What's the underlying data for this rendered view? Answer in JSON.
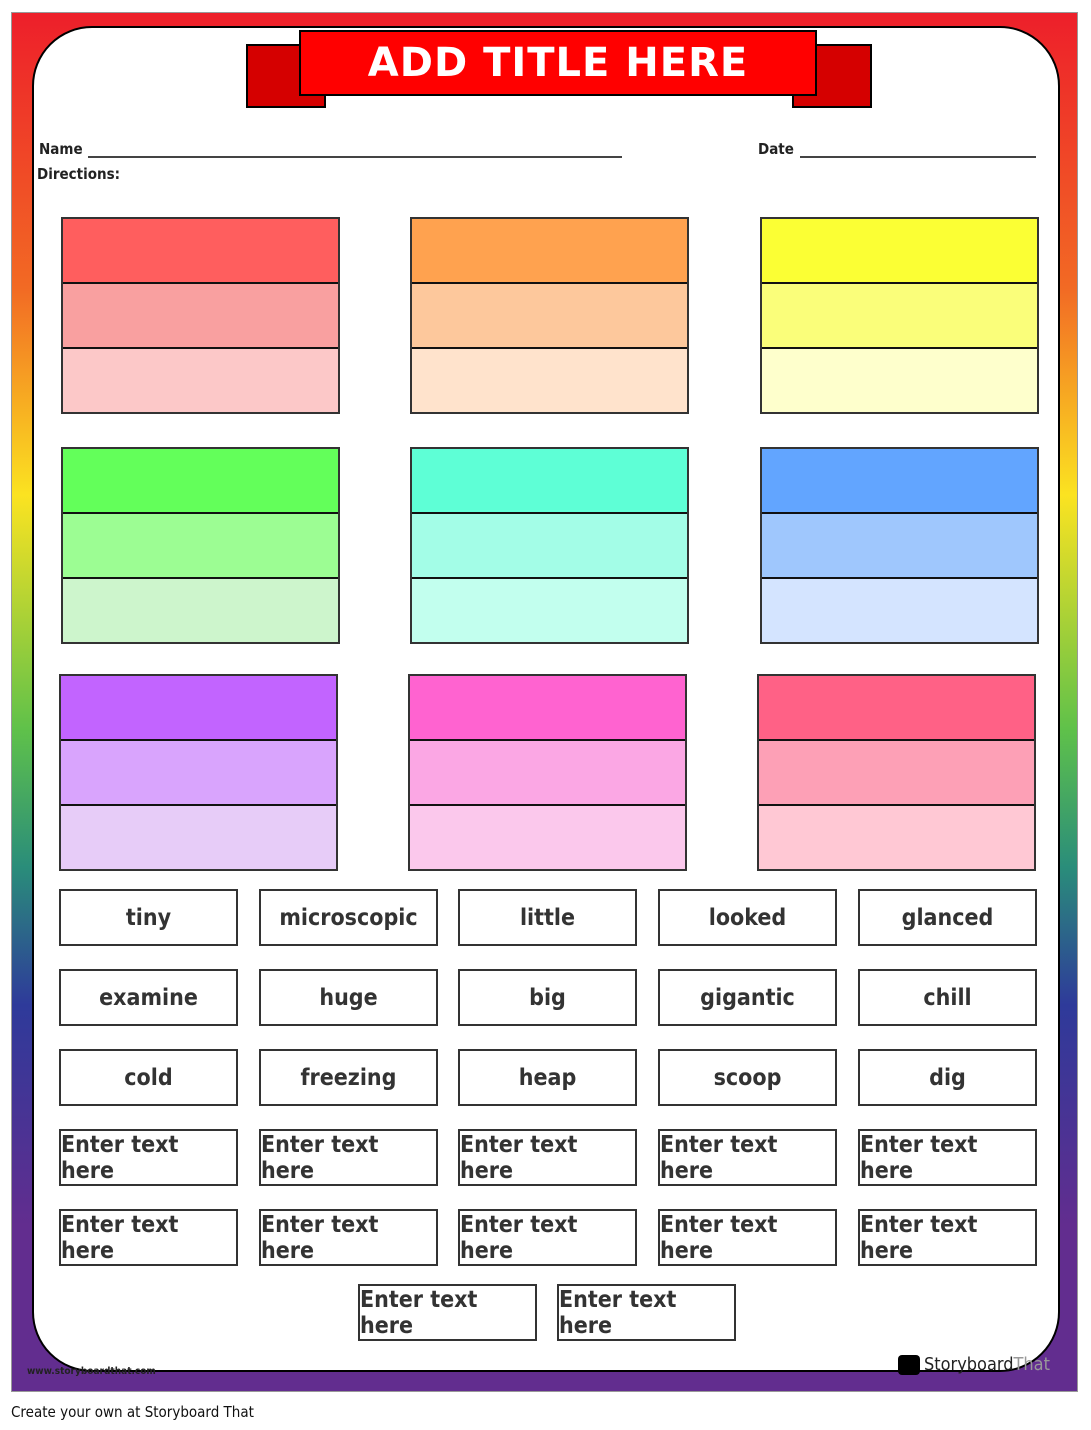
{
  "title": "ADD TITLE HERE",
  "labels": {
    "name": "Name",
    "date": "Date",
    "directions": "Directions:"
  },
  "blocks": [
    [
      "#ff5e5e",
      "#f9a0a0",
      "#fcc8c8"
    ],
    [
      "#ffa24f",
      "#fdc89c",
      "#ffe3cc"
    ],
    [
      "#fbff34",
      "#fafe7a",
      "#feffcc"
    ],
    [
      "#63ff5a",
      "#9cfd93",
      "#cdf5cc"
    ],
    [
      "#5effd6",
      "#a3fde7",
      "#c2ffee"
    ],
    [
      "#62a5ff",
      "#9fc7fd",
      "#d4e4ff"
    ],
    [
      "#c264ff",
      "#d9a4fd",
      "#e7ccf8"
    ],
    [
      "#ff63d0",
      "#fba7e4",
      "#fbc8ec"
    ],
    [
      "#ff6186",
      "#fda0b6",
      "#ffc8d4"
    ]
  ],
  "words": [
    "tiny",
    "microscopic",
    "little",
    "looked",
    "glanced",
    "examine",
    "huge",
    "big",
    "gigantic",
    "chill",
    "cold",
    "freezing",
    "heap",
    "scoop",
    "dig",
    "Enter text here",
    "Enter text here",
    "Enter text here",
    "Enter text here",
    "Enter text here",
    "Enter text here",
    "Enter text here",
    "Enter text here",
    "Enter text here",
    "Enter text here",
    "Enter text here",
    "Enter text here"
  ],
  "footer": {
    "website": "www.storyboardthat.com",
    "logo_a": "Storyboard",
    "logo_b": "That",
    "caption": "Create your own at Storyboard That"
  }
}
